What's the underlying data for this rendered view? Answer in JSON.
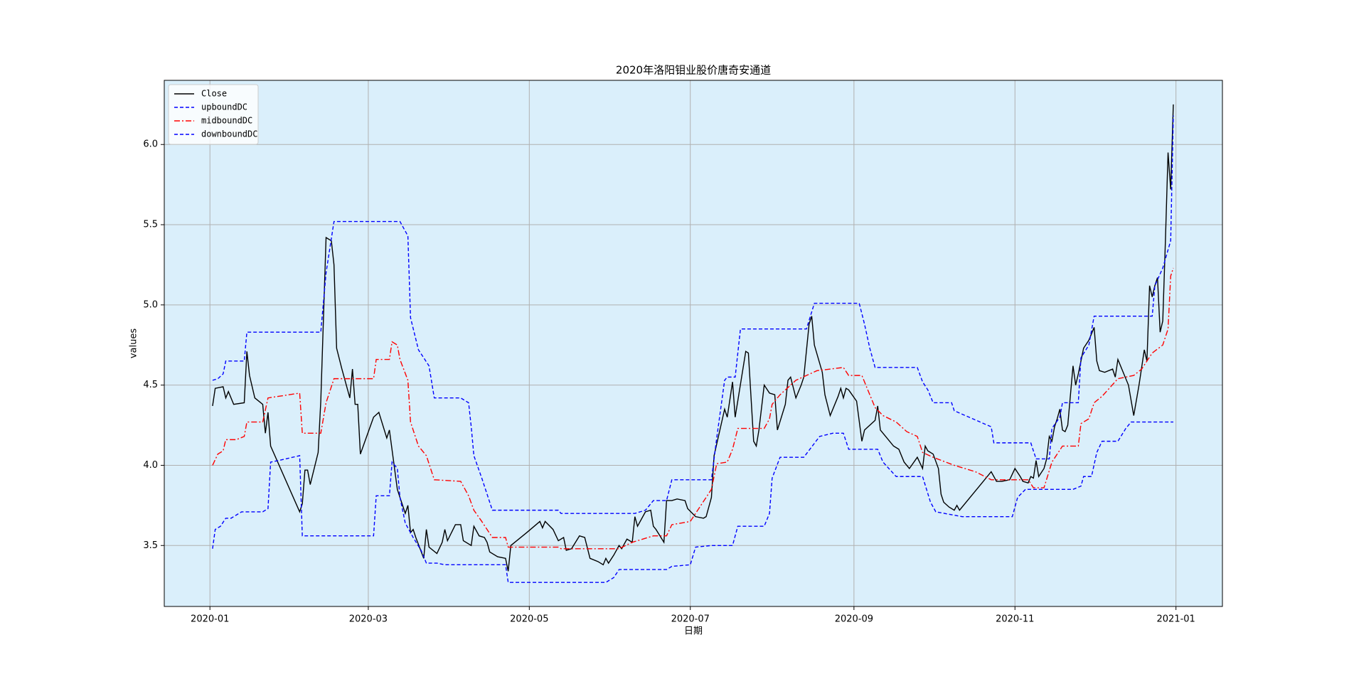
{
  "chart_data": {
    "type": "line",
    "title": "2020年洛阳钼业股价唐奇安通道",
    "xlabel": "日期",
    "ylabel": "values",
    "background": "#daeffb",
    "grid": true,
    "legend": "upper left",
    "xlim": [
      -17.3,
      383.6
    ],
    "xticks": [
      {
        "value": 0,
        "label": "2020-01"
      },
      {
        "value": 60,
        "label": "2020-03"
      },
      {
        "value": 121,
        "label": "2020-05"
      },
      {
        "value": 182,
        "label": "2020-07"
      },
      {
        "value": 244,
        "label": "2020-09"
      },
      {
        "value": 305,
        "label": "2020-11"
      },
      {
        "value": 366,
        "label": "2021-01"
      }
    ],
    "ylim": [
      3.12,
      6.4
    ],
    "yticks": [
      3.5,
      {
        "value": 4,
        "label": "4.0"
      },
      4.5,
      {
        "value": 5,
        "label": "5.0"
      },
      5.5,
      {
        "value": 6,
        "label": "6.0"
      }
    ],
    "series": [
      {
        "name": "Close",
        "color": "#000000",
        "linestyle": "solid",
        "x": [
          1,
          2,
          5,
          6,
          7,
          9,
          13,
          14,
          15,
          17,
          20,
          21,
          22,
          23,
          34,
          35,
          36,
          37,
          38,
          41,
          42,
          44,
          46,
          47,
          48,
          50,
          53,
          54,
          55,
          56,
          57,
          62,
          64,
          67,
          68,
          71,
          74,
          75,
          76,
          77,
          78,
          81,
          82,
          83,
          86,
          88,
          89,
          90,
          93,
          95,
          96,
          99,
          100,
          102,
          104,
          105,
          106,
          109,
          112,
          113,
          114,
          120,
          125,
          126,
          127,
          130,
          132,
          134,
          135,
          137,
          140,
          142,
          144,
          147,
          149,
          150,
          151,
          153,
          155,
          156,
          158,
          160,
          161,
          162,
          165,
          167,
          168,
          169,
          172,
          173,
          175,
          177,
          180,
          181,
          184,
          187,
          188,
          190,
          191,
          195,
          196,
          198,
          199,
          203,
          204,
          206,
          207,
          208,
          210,
          212,
          214,
          215,
          218,
          219,
          220,
          222,
          224,
          225,
          227,
          228,
          229,
          232,
          233,
          235,
          238,
          239,
          240,
          241,
          242,
          245,
          247,
          248,
          252,
          253,
          254,
          256,
          259,
          261,
          263,
          265,
          268,
          270,
          271,
          272,
          274,
          276,
          277,
          278,
          280,
          282,
          283,
          284,
          289,
          292,
          296,
          298,
          300,
          303,
          305,
          307,
          308,
          310,
          311,
          312,
          313,
          314,
          316,
          317,
          318,
          319,
          320,
          321,
          322,
          323,
          324,
          325,
          327,
          328,
          329,
          331,
          333,
          335,
          336,
          337,
          339,
          342,
          343,
          344,
          346,
          348,
          350,
          352,
          354,
          355,
          356,
          357,
          358,
          359,
          360,
          361,
          362,
          363,
          364,
          365
        ],
        "values": [
          4.37,
          4.48,
          4.49,
          4.42,
          4.46,
          4.38,
          4.39,
          4.71,
          4.56,
          4.42,
          4.38,
          4.2,
          4.33,
          4.12,
          3.71,
          3.76,
          3.97,
          3.97,
          3.88,
          4.08,
          4.4,
          5.42,
          5.4,
          5.25,
          4.73,
          4.6,
          4.42,
          4.6,
          4.38,
          4.38,
          4.07,
          4.3,
          4.33,
          4.17,
          4.22,
          3.85,
          3.7,
          3.75,
          3.58,
          3.6,
          3.55,
          3.42,
          3.6,
          3.49,
          3.45,
          3.52,
          3.6,
          3.53,
          3.63,
          3.63,
          3.53,
          3.5,
          3.62,
          3.56,
          3.55,
          3.52,
          3.46,
          3.43,
          3.42,
          3.34,
          3.5,
          3.58,
          3.65,
          3.61,
          3.65,
          3.6,
          3.53,
          3.55,
          3.47,
          3.48,
          3.56,
          3.55,
          3.42,
          3.4,
          3.38,
          3.42,
          3.39,
          3.44,
          3.5,
          3.48,
          3.54,
          3.52,
          3.68,
          3.62,
          3.71,
          3.72,
          3.62,
          3.6,
          3.52,
          3.78,
          3.78,
          3.79,
          3.78,
          3.73,
          3.68,
          3.67,
          3.68,
          3.8,
          4.06,
          4.35,
          4.3,
          4.52,
          4.3,
          4.71,
          4.7,
          4.15,
          4.12,
          4.22,
          4.5,
          4.45,
          4.44,
          4.22,
          4.38,
          4.53,
          4.55,
          4.42,
          4.5,
          4.55,
          4.88,
          4.93,
          4.75,
          4.58,
          4.44,
          4.31,
          4.43,
          4.48,
          4.42,
          4.48,
          4.47,
          4.4,
          4.15,
          4.22,
          4.28,
          4.37,
          4.22,
          4.18,
          4.12,
          4.1,
          4.02,
          3.98,
          4.05,
          3.98,
          4.12,
          4.09,
          4.07,
          3.98,
          3.82,
          3.77,
          3.74,
          3.72,
          3.75,
          3.72,
          3.82,
          3.88,
          3.96,
          3.9,
          3.9,
          3.91,
          3.98,
          3.93,
          3.9,
          3.89,
          3.93,
          3.92,
          4.03,
          3.93,
          3.98,
          4.04,
          4.18,
          4.15,
          4.24,
          4.29,
          4.35,
          4.22,
          4.21,
          4.25,
          4.62,
          4.5,
          4.57,
          4.73,
          4.78,
          4.86,
          4.65,
          4.59,
          4.58,
          4.6,
          4.55,
          4.66,
          4.58,
          4.5,
          4.31,
          4.5,
          4.72,
          4.65,
          5.12,
          5.05,
          5.12,
          5.17,
          4.83,
          4.9,
          5.4,
          5.95,
          5.72,
          6.25
        ]
      },
      {
        "name": "upboundDC",
        "color": "#0000ff",
        "linestyle": "dashed",
        "x": [
          1,
          3,
          5,
          6,
          13,
          14,
          42,
          44,
          47,
          72,
          75,
          76,
          79,
          83,
          85,
          95,
          98,
          99,
          100,
          103,
          105,
          107,
          132,
          133,
          161,
          163,
          165,
          168,
          173,
          175,
          190,
          192,
          195,
          196,
          199,
          201,
          226,
          229,
          246,
          248,
          250,
          252,
          268,
          270,
          272,
          274,
          281,
          282,
          289,
          296,
          297,
          311,
          313,
          318,
          319,
          322,
          323,
          329,
          330,
          333,
          335,
          357,
          358,
          361,
          364,
          365
        ],
        "values": [
          4.53,
          4.54,
          4.57,
          4.65,
          4.65,
          4.83,
          4.83,
          5.2,
          5.52,
          5.52,
          5.43,
          4.92,
          4.72,
          4.62,
          4.42,
          4.42,
          4.39,
          4.24,
          4.06,
          3.92,
          3.82,
          3.72,
          3.72,
          3.7,
          3.7,
          3.71,
          3.72,
          3.78,
          3.78,
          3.91,
          3.91,
          4.17,
          4.53,
          4.55,
          4.55,
          4.85,
          4.85,
          5.01,
          5.01,
          4.88,
          4.73,
          4.61,
          4.61,
          4.52,
          4.47,
          4.39,
          4.39,
          4.34,
          4.29,
          4.24,
          4.14,
          4.14,
          4.04,
          4.04,
          4.23,
          4.3,
          4.39,
          4.39,
          4.67,
          4.75,
          4.93,
          4.93,
          5.12,
          5.23,
          5.4,
          6.18
        ]
      },
      {
        "name": "midboundDC",
        "color": "#ff0000",
        "linestyle": "dashdot",
        "x": [
          1,
          3,
          5,
          6,
          10,
          13,
          14,
          20,
          22,
          34,
          35,
          42,
          44,
          47,
          62,
          63,
          68,
          69,
          71,
          72,
          75,
          76,
          79,
          82,
          85,
          95,
          98,
          100,
          103,
          107,
          112,
          113,
          132,
          133,
          155,
          160,
          168,
          173,
          175,
          182,
          184,
          190,
          192,
          196,
          198,
          200,
          210,
          212,
          213,
          216,
          222,
          230,
          240,
          242,
          247,
          252,
          255,
          260,
          264,
          268,
          270,
          274,
          282,
          290,
          296,
          310,
          312,
          316,
          319,
          323,
          329,
          330,
          333,
          335,
          338,
          344,
          350,
          353,
          357,
          361,
          363,
          364,
          365
        ],
        "values": [
          4.0,
          4.07,
          4.09,
          4.16,
          4.16,
          4.18,
          4.27,
          4.27,
          4.42,
          4.45,
          4.2,
          4.2,
          4.39,
          4.54,
          4.54,
          4.66,
          4.66,
          4.77,
          4.75,
          4.66,
          4.53,
          4.27,
          4.12,
          4.06,
          3.91,
          3.9,
          3.81,
          3.72,
          3.65,
          3.55,
          3.55,
          3.49,
          3.49,
          3.48,
          3.48,
          3.52,
          3.56,
          3.56,
          3.63,
          3.65,
          3.7,
          3.85,
          4.01,
          4.02,
          4.1,
          4.23,
          4.23,
          4.29,
          4.38,
          4.44,
          4.53,
          4.59,
          4.61,
          4.56,
          4.56,
          4.36,
          4.31,
          4.27,
          4.21,
          4.18,
          4.08,
          4.05,
          4.0,
          3.96,
          3.91,
          3.91,
          3.86,
          3.86,
          4.02,
          4.12,
          4.12,
          4.26,
          4.29,
          4.39,
          4.43,
          4.54,
          4.56,
          4.6,
          4.7,
          4.75,
          4.85,
          5.18,
          5.23
        ]
      },
      {
        "name": "downboundDC",
        "color": "#0000ff",
        "linestyle": "dashed",
        "x": [
          1,
          2,
          4,
          6,
          8,
          12,
          20,
          22,
          23,
          26,
          34,
          35,
          62,
          63,
          68,
          69,
          71,
          72,
          74,
          77,
          80,
          82,
          86,
          89,
          112,
          113,
          148,
          150,
          153,
          155,
          173,
          175,
          182,
          184,
          190,
          198,
          200,
          210,
          212,
          213,
          216,
          225,
          231,
          236,
          240,
          242,
          253,
          255,
          260,
          270,
          273,
          275,
          285,
          304,
          306,
          309,
          327,
          330,
          331,
          334,
          336,
          338,
          344,
          347,
          349,
          365
        ],
        "values": [
          3.48,
          3.6,
          3.62,
          3.67,
          3.67,
          3.71,
          3.71,
          3.73,
          4.02,
          4.03,
          4.06,
          3.56,
          3.56,
          3.81,
          3.81,
          4.02,
          3.98,
          3.8,
          3.64,
          3.55,
          3.47,
          3.39,
          3.39,
          3.38,
          3.38,
          3.27,
          3.27,
          3.27,
          3.3,
          3.35,
          3.35,
          3.37,
          3.38,
          3.49,
          3.5,
          3.5,
          3.62,
          3.62,
          3.7,
          3.92,
          4.05,
          4.05,
          4.18,
          4.2,
          4.2,
          4.1,
          4.1,
          4.02,
          3.93,
          3.93,
          3.77,
          3.71,
          3.68,
          3.68,
          3.8,
          3.85,
          3.85,
          3.87,
          3.93,
          3.93,
          4.08,
          4.15,
          4.15,
          4.23,
          4.27,
          4.27
        ]
      }
    ]
  }
}
